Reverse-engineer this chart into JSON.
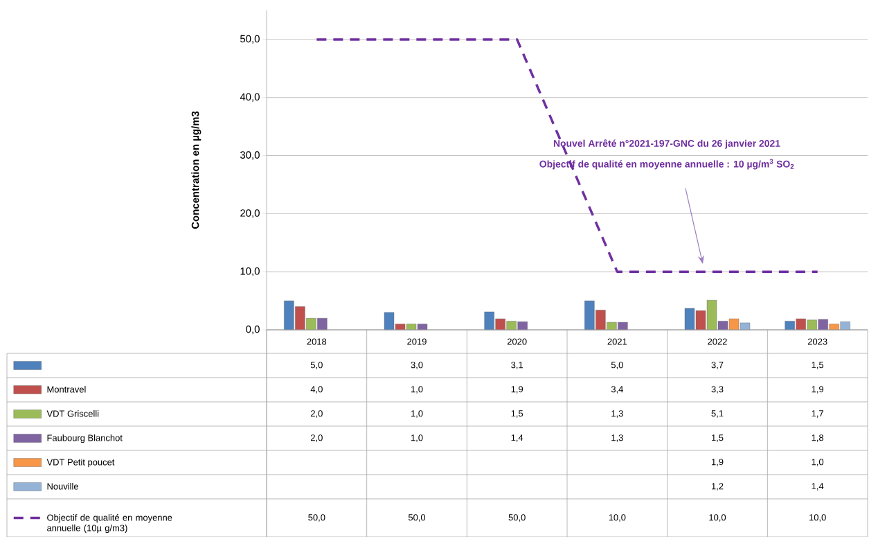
{
  "chart_data": {
    "type": "bar",
    "categories": [
      "2018",
      "2019",
      "2020",
      "2021",
      "2022",
      "2023"
    ],
    "ylabel": "Concentration en µg/m3",
    "ylim": [
      0,
      55
    ],
    "yticks": [
      {
        "value": 0,
        "label": "0,0"
      },
      {
        "value": 10,
        "label": "10,0"
      },
      {
        "value": 20,
        "label": "20,0"
      },
      {
        "value": 30,
        "label": "30,0"
      },
      {
        "value": 40,
        "label": "40,0"
      },
      {
        "value": 50,
        "label": "50,0"
      }
    ],
    "grid": "y",
    "legend": "bottom",
    "data_labels": true,
    "annotations": [
      "Nouvel Arrêté n°2021-197-GNC du 26 janvier 2021",
      "Objectif de qualité en moyenne annuelle  : 10 µg/m$^{3}$ SO$_{2}$"
    ],
    "series": [
      {
        "color": "#4f81bd",
        "values": [
          5.0,
          3.0,
          3.1,
          5.0,
          3.7,
          1.5
        ],
        "value_labels": [
          "5,0",
          "3,0",
          "3,1",
          "5,0",
          "3,7",
          "1,5"
        ]
      },
      {
        "name": "Montravel",
        "color": "#c0504d",
        "values": [
          4.0,
          1.0,
          1.9,
          3.4,
          3.3,
          1.9
        ],
        "value_labels": [
          "4,0",
          "1,0",
          "1,9",
          "3,4",
          "3,3",
          "1,9"
        ]
      },
      {
        "name": "VDT Griscelli",
        "color": "#9bbb59",
        "values": [
          2.0,
          1.0,
          1.5,
          1.3,
          5.1,
          1.7
        ],
        "value_labels": [
          "2,0",
          "1,0",
          "1,5",
          "1,3",
          "5,1",
          "1,7"
        ]
      },
      {
        "name": "Faubourg Blanchot",
        "color": "#8064a2",
        "values": [
          2.0,
          1.0,
          1.4,
          1.3,
          1.5,
          1.8
        ],
        "value_labels": [
          "2,0",
          "1,0",
          "1,4",
          "1,3",
          "1,5",
          "1,8"
        ]
      },
      {
        "name": "VDT Petit poucet",
        "color": "#f79646",
        "values": [
          null,
          null,
          null,
          null,
          1.9,
          1.0
        ],
        "value_labels": [
          null,
          null,
          null,
          null,
          "1,9",
          "1,0"
        ]
      },
      {
        "name": "Nouville",
        "color": "#95b3d7",
        "values": [
          null,
          null,
          null,
          null,
          1.2,
          1.4
        ],
        "value_labels": [
          null,
          null,
          null,
          null,
          "1,2",
          "1,4"
        ]
      },
      {
        "name": "Objectif de qualité en moyenne annuelle (10µ g/m3)",
        "type": "line",
        "line_style": "dashed",
        "color": "#7030a0",
        "values": [
          50.0,
          50.0,
          50.0,
          10.0,
          10.0,
          10.0
        ],
        "value_labels": [
          "50,0",
          "50,0",
          "50,0",
          "10,0",
          "10,0",
          "10,0"
        ]
      }
    ]
  }
}
